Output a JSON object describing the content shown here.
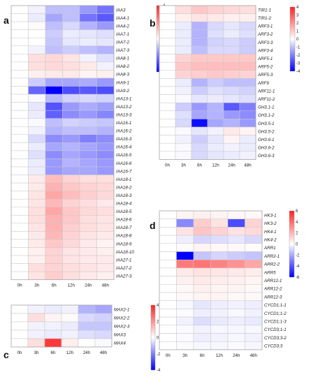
{
  "chart_data": [
    {
      "type": "heatmap",
      "panel": "a",
      "columns": [
        "0h",
        "3h",
        "6h",
        "12h",
        "24h",
        "48h"
      ],
      "colorbar": {
        "min": -4,
        "max": 4,
        "ticks": [
          4,
          3,
          2,
          1,
          0,
          -1,
          -2,
          -3,
          -4
        ]
      },
      "rows": [
        "IAA3",
        "IAA4-1",
        "IAA4-2",
        "IAA7-1",
        "IAA7-2",
        "IAA7-3",
        "IAA8-1",
        "IAA8-2",
        "IAA8-3",
        "IAA9-1",
        "IAA9-2",
        "IAA13-1",
        "IAA13-2",
        "IAA13-3",
        "IAA16-1",
        "IAA16-2",
        "IAA16-3",
        "IAA16-4",
        "IAA16-5",
        "IAA16-6",
        "IAA16-7",
        "IAA18-1",
        "IAA18-2",
        "IAA18-3",
        "IAA18-4",
        "IAA18-5",
        "IAA18-6",
        "IAA18-7",
        "IAA18-8",
        "IAA18-9",
        "IAA18-10",
        "IAA27-1",
        "IAA27-2",
        "IAA27-3"
      ],
      "values": [
        [
          0,
          -0.2,
          -1.0,
          -1.0,
          -1.6,
          -2.2
        ],
        [
          0,
          -0.3,
          -1.4,
          -1.0,
          -2.2,
          -2.6
        ],
        [
          0,
          0.1,
          -1.0,
          -0.6,
          -1.2,
          -1.6
        ],
        [
          0,
          0,
          -0.8,
          -0.3,
          -0.4,
          -0.5
        ],
        [
          0,
          0,
          -0.9,
          -0.4,
          -0.3,
          -0.4
        ],
        [
          0,
          -0.2,
          -1.0,
          -0.8,
          -1.0,
          -1.2
        ],
        [
          0,
          0.6,
          0.7,
          0.5,
          -0.2,
          -0.5
        ],
        [
          0,
          0.6,
          0.7,
          0.6,
          0.4,
          -0.2
        ],
        [
          0,
          0.3,
          0.4,
          0.4,
          0.2,
          0.3
        ],
        [
          0,
          -0.8,
          -1.4,
          -1.4,
          -1.3,
          -1.6
        ],
        [
          0,
          -2.4,
          -4.0,
          -2.8,
          -2.6,
          -2.8
        ],
        [
          0,
          -0.1,
          -1.1,
          -0.7,
          -0.6,
          -0.7
        ],
        [
          0,
          -0.4,
          -2.7,
          -1.6,
          -1.3,
          -1.5
        ],
        [
          0,
          -0.3,
          -2.5,
          -1.8,
          -1.6,
          -1.9
        ],
        [
          0,
          -0.1,
          -1.0,
          -0.7,
          -0.8,
          -0.9
        ],
        [
          0,
          -0.2,
          -1.2,
          -1.0,
          -1.0,
          -1.2
        ],
        [
          0,
          -0.6,
          -1.8,
          -1.6,
          -2.0,
          -1.8
        ],
        [
          0,
          -0.3,
          -1.4,
          -1.2,
          -1.4,
          -1.6
        ],
        [
          0,
          -0.5,
          -1.8,
          -1.4,
          -1.6,
          -1.8
        ],
        [
          0,
          -0.3,
          -1.6,
          -1.2,
          -1.4,
          -1.6
        ],
        [
          0,
          -0.3,
          -1.6,
          -1.4,
          -1.4,
          -1.6
        ],
        [
          0,
          0.4,
          1.2,
          0.8,
          0.6,
          0.6
        ],
        [
          0,
          0.4,
          1.4,
          1.0,
          0.8,
          0.7
        ],
        [
          0,
          0.5,
          1.6,
          1.2,
          0.9,
          0.7
        ],
        [
          0,
          0.5,
          1.3,
          0.8,
          0.6,
          0.4
        ],
        [
          0,
          0.6,
          1.6,
          1.0,
          0.7,
          0.6
        ],
        [
          0,
          0.6,
          1.4,
          1.0,
          0.6,
          0.5
        ],
        [
          0,
          0.5,
          1.4,
          0.9,
          0.6,
          0.5
        ],
        [
          0,
          0.4,
          1.3,
          0.8,
          0.5,
          0.4
        ],
        [
          0,
          0.4,
          1.0,
          0.7,
          0.4,
          0.2
        ],
        [
          0,
          0.3,
          0.8,
          0.5,
          0.4,
          0.3
        ],
        [
          0,
          0.3,
          0.8,
          0.5,
          0.4,
          0.4
        ],
        [
          0,
          0.6,
          0.8,
          0.6,
          0.5,
          0.4
        ],
        [
          0,
          0.5,
          0.9,
          0.6,
          0.4,
          0.3
        ]
      ]
    },
    {
      "type": "heatmap",
      "panel": "b",
      "columns": [
        "0h",
        "3h",
        "6h",
        "12h",
        "24h",
        "48h"
      ],
      "colorbar": {
        "min": -4,
        "max": 4,
        "ticks": [
          4,
          3,
          2,
          1,
          0,
          -1,
          -2,
          -3,
          -4
        ]
      },
      "rows": [
        "TIR1-1",
        "TIR1-2",
        "ARF3-1",
        "ARF3-2",
        "ARF3-3",
        "ARF3-4",
        "ARF5-1",
        "ARF5-2",
        "ARF5-3",
        "ARF9",
        "ARF11-1",
        "ARF11-2",
        "GH3.1-1",
        "GH3.1-2",
        "GH3.5-1",
        "GH3.5-2",
        "GH3.6-1",
        "GH3.6-2",
        "GH3.6-3"
      ],
      "values": [
        [
          0,
          0.6,
          1.0,
          0.8,
          0.7,
          0.6
        ],
        [
          0,
          0.3,
          0.5,
          0.4,
          0.3,
          0.3
        ],
        [
          0,
          -0.3,
          -1.2,
          -0.6,
          -0.4,
          -0.6
        ],
        [
          0,
          -0.3,
          -1.2,
          -0.5,
          -0.3,
          -0.5
        ],
        [
          0,
          -0.3,
          -1.2,
          -0.7,
          -0.6,
          -0.8
        ],
        [
          0,
          -0.3,
          -1.0,
          -0.6,
          -0.6,
          -0.8
        ],
        [
          0,
          0.8,
          1.0,
          1.0,
          1.0,
          1.0
        ],
        [
          0,
          1.0,
          1.2,
          1.2,
          1.2,
          1.2
        ],
        [
          0,
          0.8,
          0.9,
          1.0,
          0.9,
          0.8
        ],
        [
          0,
          -0.3,
          -1.2,
          -0.8,
          -1.0,
          -1.0
        ],
        [
          0,
          -0.2,
          -0.8,
          -0.5,
          -0.6,
          -0.7
        ],
        [
          0,
          -0.1,
          -0.4,
          -0.3,
          -0.4,
          -0.5
        ],
        [
          0,
          -0.8,
          -1.6,
          -1.2,
          -2.6,
          -2.0
        ],
        [
          0,
          -0.5,
          -1.4,
          -1.2,
          -1.6,
          -1.8
        ],
        [
          0,
          -0.6,
          -3.8,
          -1.4,
          -1.2,
          -1.6
        ],
        [
          0,
          -0.1,
          -0.4,
          -0.2,
          0.4,
          0.2
        ],
        [
          0,
          -0.2,
          -0.8,
          -0.4,
          0.2,
          -0.3
        ],
        [
          0,
          -0.1,
          -0.6,
          -0.3,
          -0.2,
          -0.3
        ],
        [
          0,
          -0.1,
          -0.6,
          -0.4,
          -0.3,
          -0.2
        ]
      ]
    },
    {
      "type": "heatmap",
      "panel": "c",
      "columns": [
        "0h",
        "3h",
        "6h",
        "12h",
        "24h",
        "48h"
      ],
      "colorbar": {
        "min": -4,
        "max": 4,
        "ticks": [
          4,
          2,
          0,
          -2,
          -4
        ]
      },
      "rows": [
        "MAX2-1",
        "MAX2-2",
        "MAX2-3",
        "MAX3",
        "MAX4"
      ],
      "values": [
        [
          0,
          -0.2,
          -0.3,
          -0.2,
          -1.2,
          -1.4
        ],
        [
          0,
          0.6,
          0.2,
          0.1,
          -0.6,
          -0.7
        ],
        [
          0,
          -0.2,
          -0.2,
          -0.3,
          -0.9,
          -0.9
        ],
        [
          0,
          -0.2,
          -0.3,
          -0.2,
          -0.5,
          -0.6
        ],
        [
          0,
          0.6,
          3.6,
          0.3,
          0,
          -0.1
        ]
      ]
    },
    {
      "type": "heatmap",
      "panel": "d",
      "columns": [
        "0h",
        "3h",
        "6h",
        "12h",
        "24h",
        "48h"
      ],
      "colorbar": {
        "min": -6,
        "max": 6,
        "ticks": [
          6,
          4,
          2,
          0,
          -2,
          -4,
          -6
        ]
      },
      "rows": [
        "HK3-1",
        "HK3-2",
        "HK4-1",
        "HK4-2",
        "ARR1",
        "ARR2-1",
        "ARR2-2",
        "ARR5",
        "ARR12-1",
        "ARR12-2",
        "ARR12-3",
        "CYCD1;1-1",
        "CYCD1;1-2",
        "CYCD1;1-3",
        "CYCD3;1-1",
        "CYCD3;3-2",
        "CYCD3;3"
      ],
      "values": [
        [
          0,
          0.3,
          0.4,
          0.3,
          0.2,
          0.2
        ],
        [
          0,
          -2.8,
          1.4,
          0.8,
          -4.2,
          1.2
        ],
        [
          0,
          0.8,
          1.6,
          1.2,
          0.8,
          1.0
        ],
        [
          0,
          -0.4,
          -1.0,
          -0.8,
          -0.6,
          -0.9
        ],
        [
          0,
          0.1,
          0.3,
          0.2,
          0.2,
          0.1
        ],
        [
          0,
          -6.0,
          -1.4,
          -1.0,
          -1.2,
          -1.4
        ],
        [
          0,
          3.6,
          3.8,
          3.4,
          3.0,
          2.4
        ],
        [
          0,
          0.6,
          0.8,
          0.7,
          0.6,
          0.5
        ],
        [
          0,
          0.4,
          0.6,
          0.5,
          0.4,
          0.3
        ],
        [
          0,
          0.2,
          0.4,
          0.3,
          0.3,
          0.2
        ],
        [
          0,
          0.2,
          0.3,
          0.3,
          0.2,
          0.2
        ],
        [
          0,
          -0.2,
          -0.6,
          -0.4,
          -0.3,
          -0.4
        ],
        [
          0,
          -0.1,
          -0.4,
          -0.3,
          -0.2,
          -0.3
        ],
        [
          0,
          -0.3,
          -0.8,
          -0.5,
          -0.4,
          -0.5
        ],
        [
          0,
          -0.1,
          -0.3,
          -0.2,
          -0.2,
          -0.2
        ],
        [
          0,
          -0.1,
          -0.4,
          -0.3,
          -0.2,
          -0.3
        ],
        [
          0,
          -0.1,
          -0.2,
          -0.2,
          -0.1,
          -0.2
        ]
      ]
    }
  ]
}
